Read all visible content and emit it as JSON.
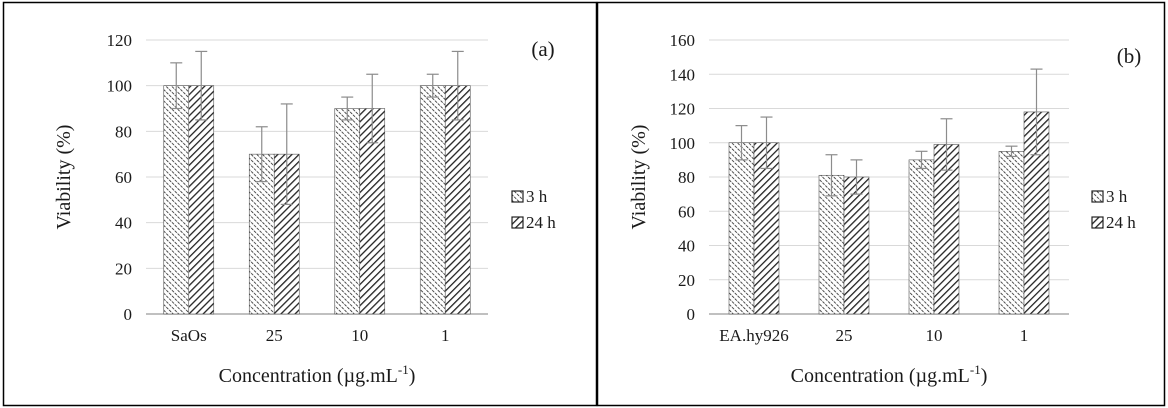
{
  "chart_data": [
    {
      "type": "bar",
      "panel_label": "(a)",
      "categories": [
        "SaOs",
        "25",
        "10",
        "1"
      ],
      "series": [
        {
          "name": "3 h",
          "values": [
            100,
            70,
            90,
            100
          ],
          "errors": [
            10,
            12,
            5,
            5
          ],
          "pattern": "dotted"
        },
        {
          "name": "24 h",
          "values": [
            100,
            70,
            90,
            100
          ],
          "errors": [
            15,
            22,
            15,
            15
          ],
          "pattern": "diagonal-stripes"
        }
      ],
      "xlabel": "Concentration (µg.mL",
      "xlabel_sup": "-1",
      "xlabel_end": ")",
      "ylabel": "Viability (%)",
      "ylim": [
        0,
        120
      ],
      "yticks": [
        0,
        20,
        40,
        60,
        80,
        100,
        120
      ],
      "grid": true,
      "legend_position": "right"
    },
    {
      "type": "bar",
      "panel_label": "(b)",
      "categories": [
        "EA.hy926",
        "25",
        "10",
        "1"
      ],
      "series": [
        {
          "name": "3 h",
          "values": [
            100,
            81,
            90,
            95
          ],
          "errors": [
            10,
            12,
            5,
            3
          ],
          "pattern": "dotted"
        },
        {
          "name": "24 h",
          "values": [
            100,
            80,
            99,
            118
          ],
          "errors": [
            15,
            10,
            15,
            25
          ],
          "pattern": "diagonal-stripes"
        }
      ],
      "xlabel": "Concentration (µg.mL",
      "xlabel_sup": "-1",
      "xlabel_end": ")",
      "ylabel": "Viability (%)",
      "ylim": [
        0,
        160
      ],
      "yticks": [
        0,
        20,
        40,
        60,
        80,
        100,
        120,
        140,
        160
      ],
      "grid": true,
      "legend_position": "right"
    }
  ],
  "colors": {
    "bar_fill": "#ffffff",
    "pattern": "#222222",
    "grid": "#d9d9d9",
    "axis": "#9a9a9a",
    "error_bar": "#8c8c8c",
    "border": "#000000"
  }
}
